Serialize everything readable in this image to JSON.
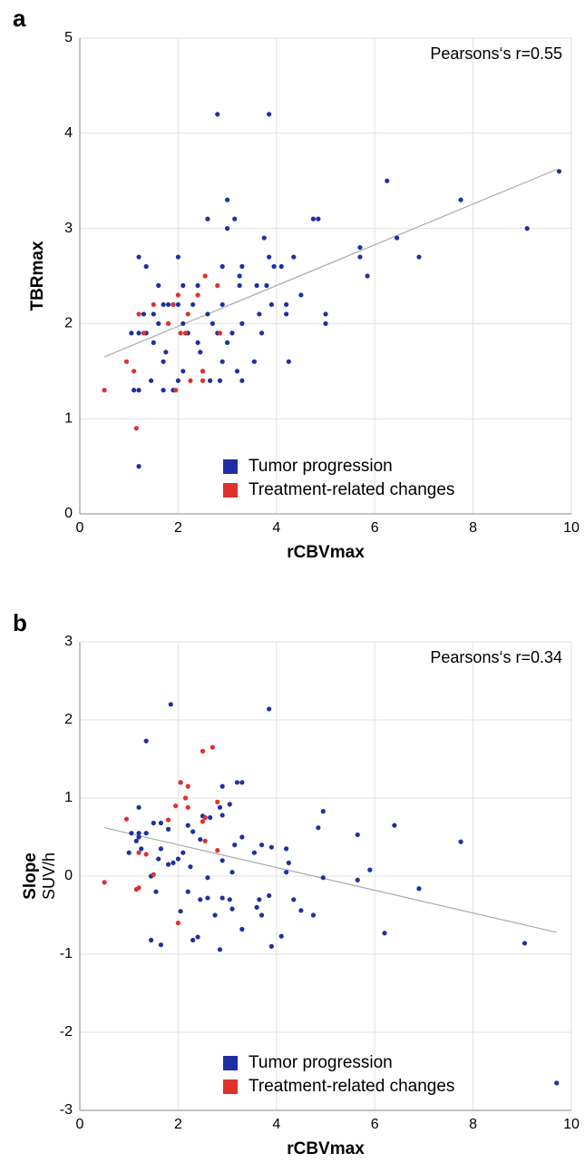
{
  "chart_data": [
    {
      "type": "scatter",
      "label": "a",
      "xlabel": "rCBVmax",
      "ylabel": "TBRmax",
      "annotation": "Pearsons‘s r=0.55",
      "xlim": [
        0,
        10
      ],
      "ylim": [
        0,
        5
      ],
      "xticks": [
        0,
        2,
        4,
        6,
        8,
        10
      ],
      "yticks": [
        0,
        1,
        2,
        3,
        4,
        5
      ],
      "grid": true,
      "series": [
        {
          "name": "Tumor progression",
          "color": "#1f2fa3",
          "x": [
            2.8,
            3.85,
            9.75,
            6.25,
            7.75,
            3,
            9.1,
            4.75,
            4.85,
            2.6,
            3.15,
            3,
            6.45,
            3.75,
            5.7,
            5.7,
            6.9,
            1.2,
            2,
            3.85,
            4.35,
            1.35,
            2.9,
            3.3,
            4.1,
            3.95,
            5.85,
            3.25,
            1.6,
            2.1,
            2.4,
            3.25,
            3.8,
            3.6,
            4.5,
            1.3,
            1.7,
            1.8,
            1.9,
            2,
            2.3,
            2.9,
            3.9,
            4.2,
            5,
            5,
            1.5,
            2.6,
            3.65,
            4.2,
            1.6,
            2.1,
            2.7,
            3.3,
            1.05,
            1.2,
            1.35,
            2.2,
            2.8,
            3.1,
            3.7,
            1.5,
            2.4,
            1.75,
            2.45,
            3,
            3.55,
            4.25,
            1.7,
            2.9,
            2.1,
            2.5,
            3.2,
            1.45,
            2,
            2.65,
            2.85,
            3.3,
            1.1,
            1.2,
            1.7,
            1.9,
            1.2
          ],
          "y": [
            4.2,
            4.2,
            3.6,
            3.5,
            3.3,
            3.3,
            3,
            3.1,
            3.1,
            3.1,
            3.1,
            3,
            2.9,
            2.9,
            2.8,
            2.7,
            2.7,
            2.7,
            2.7,
            2.7,
            2.7,
            2.6,
            2.6,
            2.6,
            2.6,
            2.6,
            2.5,
            2.5,
            2.4,
            2.4,
            2.4,
            2.4,
            2.4,
            2.4,
            2.3,
            2.1,
            2.2,
            2.2,
            2.2,
            2.2,
            2.2,
            2.2,
            2.2,
            2.2,
            2.1,
            2,
            2.1,
            2.1,
            2.1,
            2.1,
            2,
            2,
            2,
            2,
            1.9,
            1.9,
            1.9,
            1.9,
            1.9,
            1.9,
            1.9,
            1.8,
            1.8,
            1.7,
            1.7,
            1.8,
            1.6,
            1.6,
            1.6,
            1.6,
            1.5,
            1.5,
            1.5,
            1.4,
            1.4,
            1.4,
            1.4,
            1.4,
            1.3,
            1.3,
            1.3,
            1.3,
            0.5
          ]
        },
        {
          "name": "Treatment-related changes",
          "color": "#e0302c",
          "x": [
            0.5,
            0.95,
            1.1,
            1.15,
            1.2,
            1.3,
            1.5,
            1.8,
            1.9,
            2,
            2.05,
            2.2,
            2.15,
            2.25,
            2.4,
            2.5,
            2.55,
            2.5,
            2.8,
            2.85,
            1.95
          ],
          "y": [
            1.3,
            1.6,
            1.5,
            0.9,
            2.1,
            1.9,
            2.2,
            2,
            2.2,
            2.3,
            1.9,
            2.1,
            1.9,
            1.4,
            2.3,
            1.5,
            2.5,
            1.4,
            2.4,
            1.9,
            1.3
          ]
        }
      ],
      "trend_line": {
        "x": [
          0.5,
          9.7
        ],
        "y": [
          1.65,
          3.62
        ]
      }
    },
    {
      "type": "scatter",
      "label": "b",
      "xlabel": "rCBVmax",
      "ylabel": "Slope",
      "ylabel_sub": "SUV/h",
      "annotation": "Pearsons‘s r=0.34",
      "xlim": [
        0,
        10
      ],
      "ylim": [
        -3,
        3
      ],
      "xticks": [
        0,
        2,
        4,
        6,
        8,
        10
      ],
      "yticks": [
        -3,
        -2,
        -1,
        0,
        1,
        2,
        3
      ],
      "grid": true,
      "series": [
        {
          "name": "Tumor progression",
          "color": "#1f2fa3",
          "x": [
            1.85,
            3.85,
            1.35,
            3.2,
            3.3,
            2.05,
            2.9,
            1.2,
            3.05,
            2.85,
            4.95,
            2.5,
            6.4,
            4.85,
            2.65,
            1.5,
            1.65,
            2.2,
            1.2,
            1.05,
            1.35,
            1.8,
            2.3,
            2.9,
            5.65,
            7.75,
            3.3,
            2.45,
            1.2,
            1.15,
            3.7,
            3.9,
            4.2,
            1,
            1.25,
            1.65,
            2.1,
            3.15,
            3.55,
            2.9,
            1.9,
            1.6,
            2,
            1.8,
            2.25,
            4.25,
            3.1,
            5.9,
            4.2,
            1.45,
            2.6,
            4.95,
            5.65,
            1.55,
            6.9,
            2.2,
            2.45,
            2.6,
            2.9,
            3.05,
            3.65,
            3.85,
            4.35,
            2.05,
            3.1,
            3.6,
            4.5,
            4.75,
            2.75,
            3.7,
            1.45,
            1.65,
            2.3,
            2.4,
            2.85,
            3.3,
            3.9,
            4.1,
            6.2,
            9.05,
            9.7
          ],
          "y": [
            2.2,
            2.14,
            1.73,
            1.2,
            1.2,
            1.2,
            1.15,
            0.88,
            0.92,
            0.88,
            0.83,
            0.77,
            0.65,
            0.62,
            0.75,
            0.68,
            0.68,
            0.65,
            0.55,
            0.55,
            0.55,
            0.6,
            0.57,
            0.78,
            0.53,
            0.44,
            0.5,
            0.47,
            0.5,
            0.45,
            0.4,
            0.37,
            0.35,
            0.3,
            0.35,
            0.35,
            0.3,
            0.4,
            0.3,
            0.2,
            0.17,
            0.22,
            0.22,
            0.15,
            0.12,
            0.17,
            0.05,
            0.08,
            0.05,
            0,
            -0.02,
            -0.02,
            -0.05,
            -0.2,
            -0.16,
            -0.2,
            -0.3,
            -0.28,
            -0.28,
            -0.3,
            -0.3,
            -0.25,
            -0.3,
            -0.45,
            -0.42,
            -0.4,
            -0.44,
            -0.5,
            -0.5,
            -0.5,
            -0.82,
            -0.88,
            -0.82,
            -0.78,
            -0.94,
            -0.68,
            -0.9,
            -0.77,
            -0.73,
            -0.86,
            -2.65
          ]
        },
        {
          "name": "Treatment-related changes",
          "color": "#e0302c",
          "x": [
            0.5,
            0.95,
            1.15,
            1.2,
            1.2,
            1.35,
            1.5,
            1.8,
            1.95,
            2.05,
            2.15,
            2.2,
            2.2,
            2.5,
            2.7,
            2.5,
            2.55,
            2.55,
            2.8,
            2.8,
            2
          ],
          "y": [
            -0.08,
            0.73,
            -0.17,
            -0.15,
            0.3,
            0.28,
            0.02,
            0.72,
            0.9,
            1.2,
            1,
            0.88,
            1.15,
            1.6,
            1.65,
            0.7,
            0.45,
            0.75,
            0.95,
            0.33,
            -0.6
          ]
        }
      ],
      "trend_line": {
        "x": [
          0.5,
          9.7
        ],
        "y": [
          0.62,
          -0.72
        ]
      }
    }
  ]
}
